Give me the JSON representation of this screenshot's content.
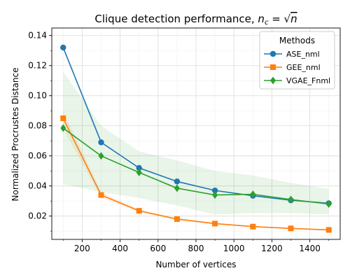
{
  "chart_data": {
    "type": "line",
    "title": "Clique detection performance, ",
    "title_math": {
      "prefix": "n",
      "sub": "c",
      "eq": " = √",
      "radicand": "n"
    },
    "xlabel": "Number of vertices",
    "ylabel": "Normalized Procrustes Distance",
    "xlim": [
      40,
      1560
    ],
    "ylim": [
      0.0045,
      0.145
    ],
    "xticks": [
      200,
      400,
      600,
      800,
      1000,
      1200,
      1400
    ],
    "yticks": [
      0.02,
      0.04,
      0.06,
      0.08,
      0.1,
      0.12,
      0.14
    ],
    "ytick_labels": [
      "0.02",
      "0.04",
      "0.06",
      "0.08",
      "0.10",
      "0.12",
      "0.14"
    ],
    "grid": true,
    "legend": {
      "title": "Methods",
      "placement": "top-right"
    },
    "x": [
      100,
      300,
      500,
      700,
      900,
      1100,
      1300,
      1500
    ],
    "series": [
      {
        "name": "ASE_nml",
        "color": "#1f77b4",
        "marker": "circle",
        "values": [
          0.132,
          0.069,
          0.052,
          0.043,
          0.037,
          0.0335,
          0.0305,
          0.0285
        ]
      },
      {
        "name": "GEE_nml",
        "color": "#ff7f0e",
        "marker": "square",
        "values": [
          0.085,
          0.034,
          0.0235,
          0.018,
          0.015,
          0.013,
          0.0118,
          0.0108
        ],
        "band_lower": [
          0.078,
          0.032,
          0.0225,
          0.0172,
          0.0145,
          0.0126,
          0.0114,
          0.0104
        ],
        "band_upper": [
          0.09,
          0.036,
          0.0245,
          0.0188,
          0.0155,
          0.0134,
          0.0122,
          0.0112
        ]
      },
      {
        "name": "VGAE_Fnml",
        "color": "#2ca02c",
        "marker": "diamond",
        "values": [
          0.0785,
          0.06,
          0.049,
          0.0385,
          0.034,
          0.0345,
          0.031,
          0.028
        ],
        "band_lower": [
          0.041,
          0.036,
          0.032,
          0.027,
          0.021,
          0.022,
          0.022,
          0.021
        ],
        "band_upper": [
          0.116,
          0.08,
          0.063,
          0.057,
          0.05,
          0.047,
          0.042,
          0.038
        ]
      }
    ]
  }
}
